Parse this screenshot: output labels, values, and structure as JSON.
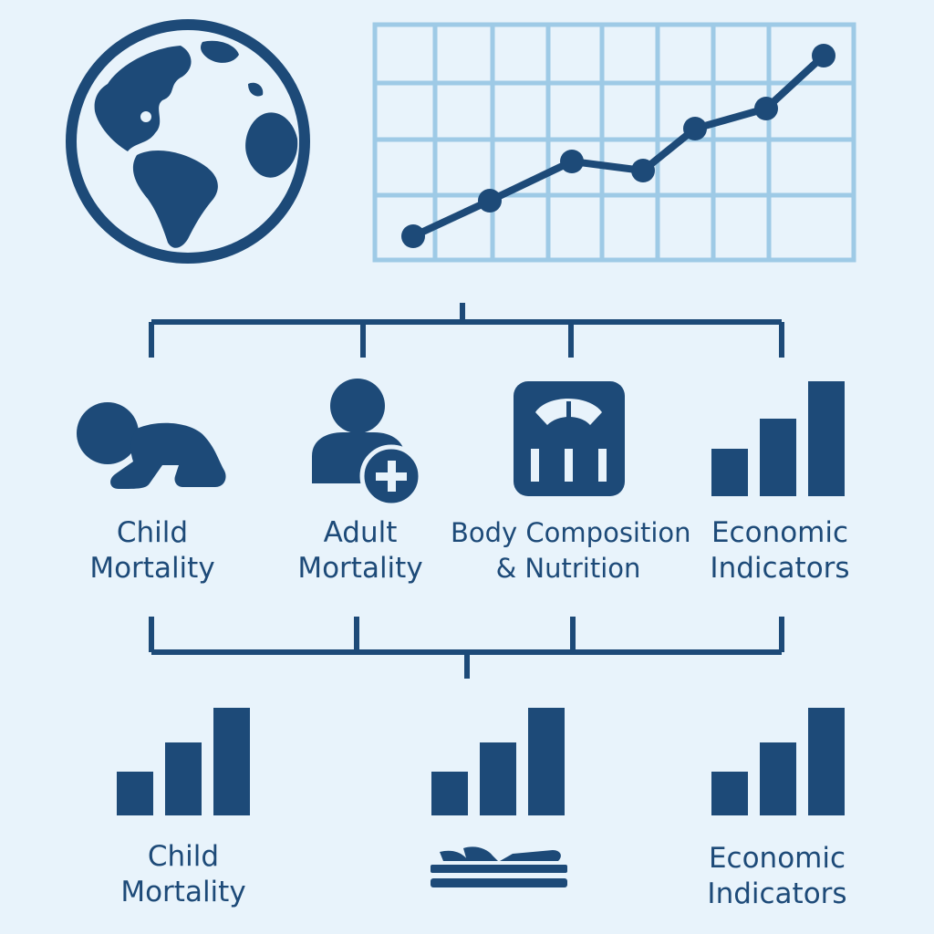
{
  "colors": {
    "primary": "#1d4a78",
    "grid_line": "#9ecae6",
    "background": "#e8f3fb"
  },
  "icons": {
    "globe": "globe-icon",
    "line_chart": "line-chart-icon",
    "baby": "crawling-baby-icon",
    "adult": "person-add-icon",
    "scale": "weighing-scale-icon",
    "bars": "bar-chart-icon",
    "lying_person": "lying-person-icon"
  },
  "categories": [
    {
      "line1": "Child",
      "line2": "Mortality"
    },
    {
      "line1": "Adult",
      "line2": "Mortality"
    },
    {
      "line1": "Body Composition",
      "line2": "& Nutrition"
    },
    {
      "line1": "Economic",
      "line2": "Indicators"
    }
  ],
  "outputs": [
    {
      "line1": "Child",
      "line2": "Mortality"
    },
    {
      "line1": "Economic",
      "line2": "Indicators"
    }
  ]
}
